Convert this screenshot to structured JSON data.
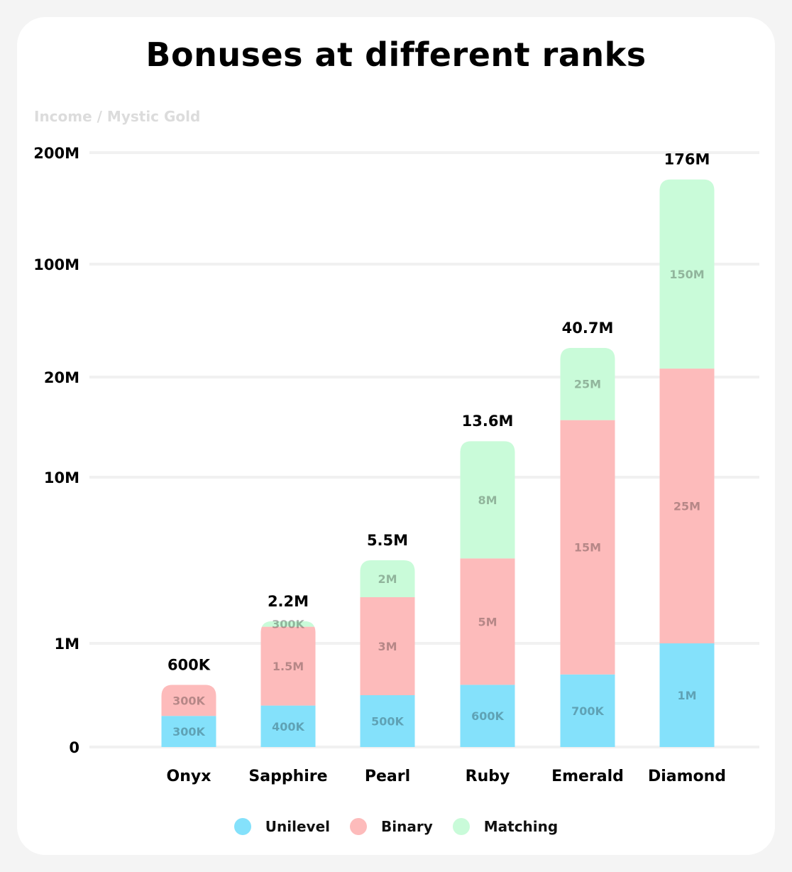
{
  "chart_data": {
    "type": "bar",
    "stacked": true,
    "title": "Bonuses at different ranks",
    "ylabel": "Income / Mystic Gold",
    "xlabel": "",
    "categories": [
      "Onyx",
      "Sapphire",
      "Pearl",
      "Ruby",
      "Emerald",
      "Diamond"
    ],
    "series": [
      {
        "name": "Unilevel",
        "color": "#84e1fb",
        "values": [
          300000,
          400000,
          500000,
          600000,
          700000,
          1000000
        ],
        "labels": [
          "300K",
          "400K",
          "500K",
          "600K",
          "700K",
          "1M"
        ]
      },
      {
        "name": "Binary",
        "color": "#fdbbbb",
        "values": [
          300000,
          1500000,
          3000000,
          5000000,
          15000000,
          25000000
        ],
        "labels": [
          "300K",
          "1.5M",
          "3M",
          "5M",
          "15M",
          "25M"
        ]
      },
      {
        "name": "Matching",
        "color": "#c9fbd9",
        "values": [
          0,
          300000,
          2000000,
          8000000,
          25000000,
          150000000
        ],
        "labels": [
          "",
          "300K",
          "2M",
          "8M",
          "25M",
          "150M"
        ]
      }
    ],
    "totals": [
      600000,
      2200000,
      5500000,
      13600000,
      40700000,
      176000000
    ],
    "total_labels": [
      "600K",
      "2.2M",
      "5.5M",
      "13.6M",
      "40.7M",
      "176M"
    ],
    "y_scale": "nonlinear",
    "y_ticks": [
      0,
      1000000,
      10000000,
      20000000,
      100000000,
      200000000
    ],
    "y_tick_labels": [
      "0",
      "1M",
      "10M",
      "20M",
      "100M",
      "200M"
    ],
    "ylim": [
      0,
      200000000
    ],
    "grid": true,
    "legend_position": "bottom-center"
  }
}
